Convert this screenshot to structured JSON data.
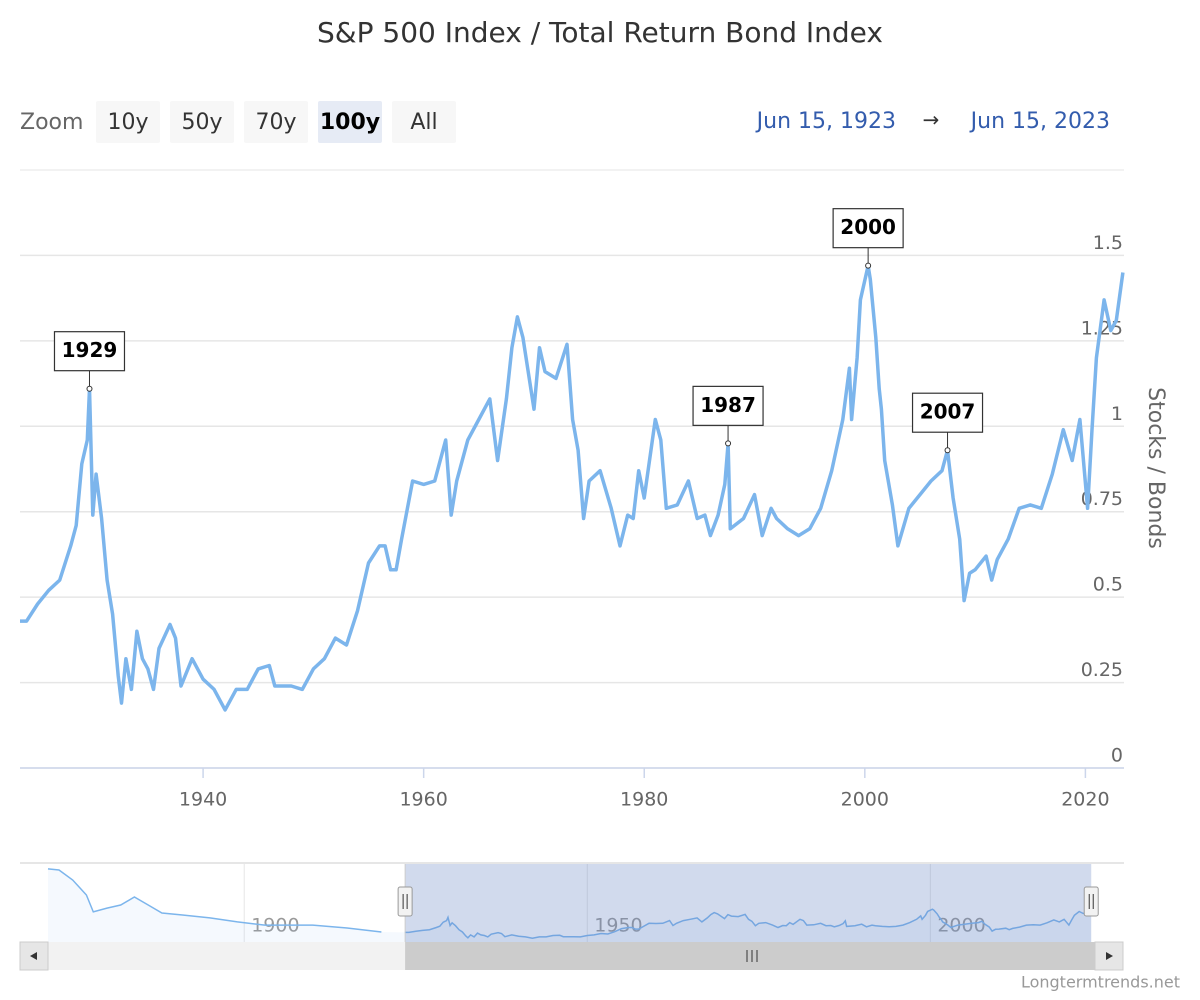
{
  "chart_data": {
    "type": "line",
    "title": "S&P 500 Index / Total Return Bond Index",
    "y_axis_title": "Stocks / Bonds",
    "zoom": {
      "label": "Zoom",
      "buttons": [
        "10y",
        "50y",
        "70y",
        "100y",
        "All"
      ],
      "selected": 3
    },
    "range_inputs": [
      "Jun 15, 1923",
      "Jun 15, 2023"
    ],
    "range_separator": "→",
    "credits": "Longtermtrends.net",
    "grid": true,
    "xlim": [
      1923.4,
      2023.5
    ],
    "xticks": [
      1940,
      1960,
      1980,
      2000,
      2020
    ],
    "ylim": [
      0,
      1.75
    ],
    "yticks": [
      0,
      0.25,
      0.5,
      0.75,
      1,
      1.25,
      1.5
    ],
    "x": [
      1923.4,
      1924,
      1925,
      1926,
      1927,
      1928,
      1928.5,
      1929,
      1929.5,
      1929.7,
      1930,
      1930.3,
      1930.8,
      1931.3,
      1931.8,
      1932.3,
      1932.6,
      1933,
      1933.5,
      1934,
      1934.5,
      1935,
      1935.5,
      1936,
      1937,
      1937.5,
      1938,
      1939,
      1940,
      1941,
      1942,
      1943,
      1944,
      1945,
      1946,
      1946.5,
      1948,
      1949,
      1950,
      1951,
      1952,
      1953,
      1954,
      1955,
      1956,
      1956.5,
      1957,
      1957.5,
      1958,
      1959,
      1960,
      1961,
      1962,
      1962.5,
      1963,
      1964,
      1965,
      1966,
      1966.7,
      1967.5,
      1968,
      1968.5,
      1969,
      1970,
      1970.5,
      1971,
      1972,
      1973,
      1973.5,
      1974,
      1974.5,
      1975,
      1976,
      1977,
      1977.8,
      1978.5,
      1979,
      1979.5,
      1980,
      1981,
      1981.5,
      1982,
      1983,
      1984,
      1984.8,
      1985.5,
      1986,
      1986.7,
      1987.3,
      1987.6,
      1987.8,
      1989,
      1990,
      1990.7,
      1991.5,
      1992,
      1993,
      1994,
      1995,
      1996,
      1997,
      1998,
      1998.6,
      1998.8,
      1999.3,
      1999.6,
      2000.3,
      2000.5,
      2001,
      2001.3,
      2001.5,
      2001.8,
      2002.5,
      2003,
      2004,
      2005,
      2006,
      2007,
      2007.5,
      2008,
      2008.6,
      2009,
      2009.5,
      2010,
      2011,
      2011.5,
      2012,
      2013,
      2014,
      2015,
      2016,
      2017,
      2018,
      2018.8,
      2019.5,
      2020.2,
      2020.6,
      2021,
      2021.7,
      2022.3,
      2022.8,
      2023.4
    ],
    "series": [
      {
        "color": "#7cb5ec",
        "values": [
          0.43,
          0.43,
          0.48,
          0.52,
          0.55,
          0.65,
          0.71,
          0.89,
          0.96,
          1.11,
          0.74,
          0.86,
          0.73,
          0.55,
          0.45,
          0.27,
          0.19,
          0.32,
          0.23,
          0.4,
          0.32,
          0.29,
          0.23,
          0.35,
          0.42,
          0.38,
          0.24,
          0.32,
          0.26,
          0.23,
          0.17,
          0.23,
          0.23,
          0.29,
          0.3,
          0.24,
          0.24,
          0.23,
          0.29,
          0.32,
          0.38,
          0.36,
          0.46,
          0.6,
          0.65,
          0.65,
          0.58,
          0.58,
          0.67,
          0.84,
          0.83,
          0.84,
          0.96,
          0.74,
          0.84,
          0.96,
          1.02,
          1.08,
          0.9,
          1.08,
          1.23,
          1.32,
          1.26,
          1.05,
          1.23,
          1.16,
          1.14,
          1.24,
          1.02,
          0.93,
          0.73,
          0.84,
          0.87,
          0.76,
          0.65,
          0.74,
          0.73,
          0.87,
          0.79,
          1.02,
          0.96,
          0.76,
          0.77,
          0.84,
          0.73,
          0.74,
          0.68,
          0.74,
          0.83,
          0.95,
          0.7,
          0.73,
          0.8,
          0.68,
          0.76,
          0.73,
          0.7,
          0.68,
          0.7,
          0.76,
          0.87,
          1.02,
          1.17,
          1.02,
          1.2,
          1.37,
          1.47,
          1.43,
          1.26,
          1.11,
          1.05,
          0.9,
          0.77,
          0.65,
          0.76,
          0.8,
          0.84,
          0.87,
          0.93,
          0.79,
          0.67,
          0.49,
          0.57,
          0.58,
          0.62,
          0.55,
          0.61,
          0.67,
          0.76,
          0.77,
          0.76,
          0.86,
          0.99,
          0.9,
          1.02,
          0.76,
          0.99,
          1.2,
          1.37,
          1.28,
          1.31,
          1.45
        ]
      }
    ],
    "annotations": [
      {
        "label": "1929",
        "x": 1929.7,
        "y": 1.11
      },
      {
        "label": "1987",
        "x": 1987.6,
        "y": 0.95
      },
      {
        "label": "2000",
        "x": 2000.3,
        "y": 1.47
      },
      {
        "label": "2007",
        "x": 2007.5,
        "y": 0.93
      }
    ],
    "navigator": {
      "xlim": [
        1871.4,
        2024
      ],
      "xticks": [
        1900,
        1950,
        2000
      ],
      "ylim": [
        0,
        3.5
      ],
      "range": [
        1923.45,
        2023.45
      ],
      "x": [
        1871.4,
        1873,
        1875,
        1877,
        1878,
        1880,
        1882,
        1884,
        1886,
        1888,
        1891,
        1895,
        1899,
        1903,
        1910,
        1915,
        1920
      ],
      "values": [
        3.28,
        3.23,
        2.78,
        2.11,
        1.35,
        1.52,
        1.66,
        2.02,
        1.66,
        1.3,
        1.21,
        1.08,
        0.9,
        0.76,
        0.76,
        0.63,
        0.45
      ]
    }
  }
}
